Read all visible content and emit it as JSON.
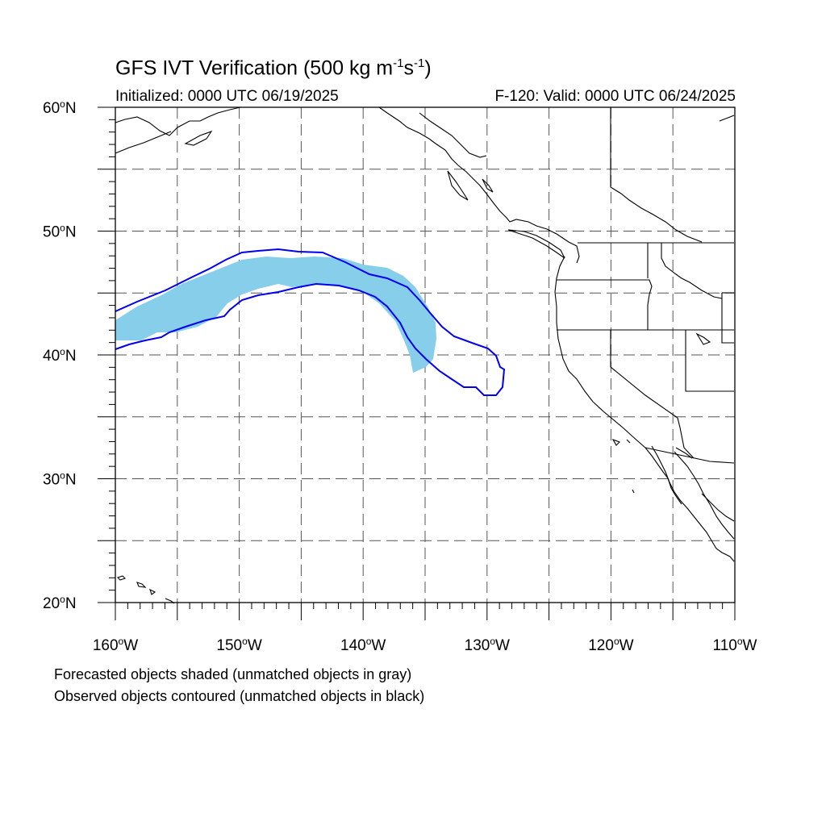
{
  "header": {
    "title_main": "GFS IVT Verification (500 kg m",
    "title_exp1": "-1",
    "title_mid": "s",
    "title_exp2": "-1",
    "title_end": ")",
    "initialized": "Initialized: 0000 UTC 06/19/2025",
    "valid": "F-120: Valid: 0000 UTC 06/24/2025"
  },
  "map": {
    "lon_range": [
      -160,
      -110
    ],
    "lat_range": [
      20,
      60
    ],
    "lat_labels": [
      {
        "lat": 60,
        "num": "60",
        "hemi": "N"
      },
      {
        "lat": 50,
        "num": "50",
        "hemi": "N"
      },
      {
        "lat": 40,
        "num": "40",
        "hemi": "N"
      },
      {
        "lat": 30,
        "num": "30",
        "hemi": "N"
      },
      {
        "lat": 20,
        "num": "20",
        "hemi": "N"
      }
    ],
    "lon_labels": [
      {
        "lon": -160,
        "num": "160",
        "hemi": "W"
      },
      {
        "lon": -150,
        "num": "150",
        "hemi": "W"
      },
      {
        "lon": -140,
        "num": "140",
        "hemi": "W"
      },
      {
        "lon": -130,
        "num": "130",
        "hemi": "W"
      },
      {
        "lon": -120,
        "num": "120",
        "hemi": "W"
      },
      {
        "lon": -110,
        "num": "110",
        "hemi": "W"
      }
    ],
    "colors": {
      "forecast_fill": "#87ceeb",
      "observed_contour": "#0000ee",
      "coastline": "#000000",
      "grid": "#555555"
    }
  },
  "legend": {
    "line1": "Forecasted objects shaded (unmatched objects in gray)",
    "line2": "Observed objects contoured (unmatched objects in black)"
  }
}
